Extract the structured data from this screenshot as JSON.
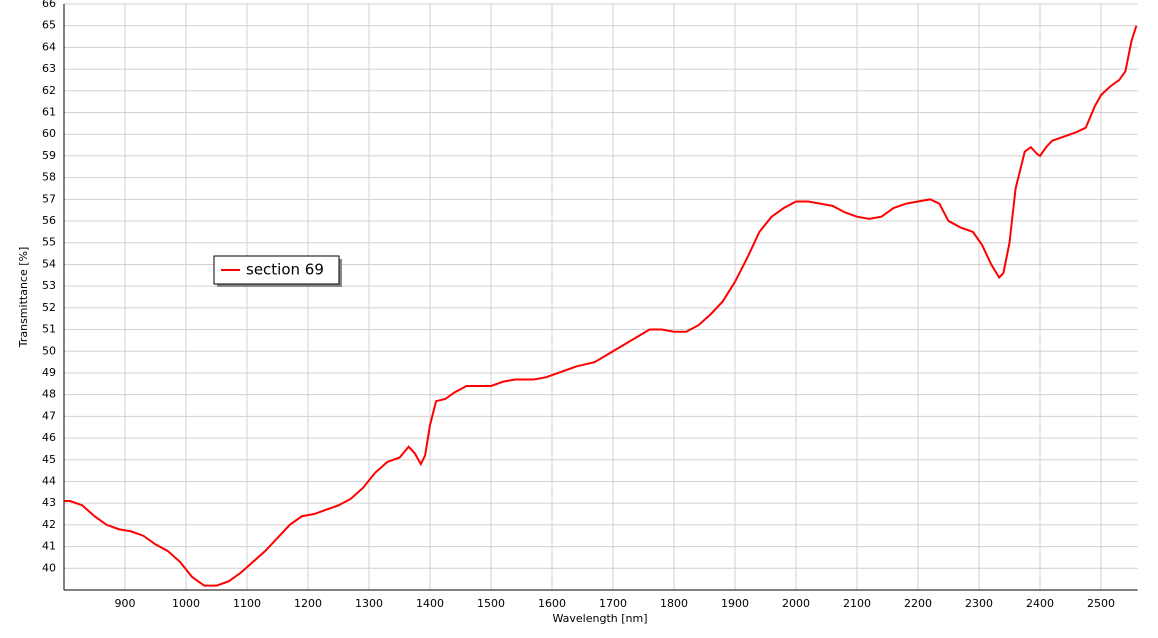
{
  "chart_data": {
    "type": "line",
    "x_label": "Wavelength [nm]",
    "y_label": "Transmittance [%]",
    "x": [
      800,
      810,
      830,
      850,
      870,
      890,
      910,
      930,
      950,
      970,
      990,
      1010,
      1030,
      1050,
      1070,
      1090,
      1110,
      1130,
      1150,
      1170,
      1190,
      1210,
      1230,
      1250,
      1270,
      1290,
      1310,
      1330,
      1350,
      1365,
      1375,
      1385,
      1392,
      1400,
      1410,
      1425,
      1440,
      1460,
      1480,
      1500,
      1520,
      1540,
      1570,
      1590,
      1610,
      1640,
      1670,
      1700,
      1730,
      1760,
      1780,
      1800,
      1820,
      1840,
      1860,
      1880,
      1900,
      1920,
      1940,
      1960,
      1980,
      2000,
      2020,
      2040,
      2060,
      2080,
      2100,
      2120,
      2140,
      2160,
      2180,
      2200,
      2220,
      2235,
      2250,
      2270,
      2290,
      2305,
      2320,
      2333,
      2340,
      2350,
      2360,
      2375,
      2385,
      2395,
      2400,
      2410,
      2420,
      2440,
      2460,
      2475,
      2490,
      2500,
      2515,
      2530,
      2540,
      2550,
      2558
    ],
    "series": [
      {
        "name": "section 69",
        "color": "#ff0000",
        "values": [
          43.1,
          43.1,
          42.9,
          42.4,
          42.0,
          41.8,
          41.7,
          41.5,
          41.1,
          40.8,
          40.3,
          39.6,
          39.2,
          39.2,
          39.4,
          39.8,
          40.3,
          40.8,
          41.4,
          42.0,
          42.4,
          42.5,
          42.7,
          42.9,
          43.2,
          43.7,
          44.4,
          44.9,
          45.1,
          45.6,
          45.3,
          44.8,
          45.2,
          46.6,
          47.7,
          47.8,
          48.1,
          48.4,
          48.4,
          48.4,
          48.6,
          48.7,
          48.7,
          48.8,
          49.0,
          49.3,
          49.5,
          50.0,
          50.5,
          51.0,
          51.0,
          50.9,
          50.9,
          51.2,
          51.7,
          52.3,
          53.2,
          54.3,
          55.5,
          56.2,
          56.6,
          56.9,
          56.9,
          56.8,
          56.7,
          56.4,
          56.2,
          56.1,
          56.2,
          56.6,
          56.8,
          56.9,
          57.0,
          56.8,
          56.0,
          55.7,
          55.5,
          54.9,
          54.0,
          53.4,
          53.6,
          55.0,
          57.5,
          59.2,
          59.4,
          59.1,
          59.0,
          59.4,
          59.7,
          59.9,
          60.1,
          60.3,
          61.3,
          61.8,
          62.2,
          62.5,
          62.9,
          64.3,
          65.0
        ]
      }
    ],
    "xlim": [
      800,
      2560
    ],
    "ylim": [
      39,
      66
    ],
    "xticks": [
      900,
      1000,
      1100,
      1200,
      1300,
      1400,
      1500,
      1600,
      1700,
      1800,
      1900,
      2000,
      2100,
      2200,
      2300,
      2400,
      2500
    ],
    "yticks": [
      40,
      41,
      42,
      43,
      44,
      45,
      46,
      47,
      48,
      49,
      50,
      51,
      52,
      53,
      54,
      55,
      56,
      57,
      58,
      59,
      60,
      61,
      62,
      63,
      64,
      65,
      66
    ],
    "grid": true
  }
}
